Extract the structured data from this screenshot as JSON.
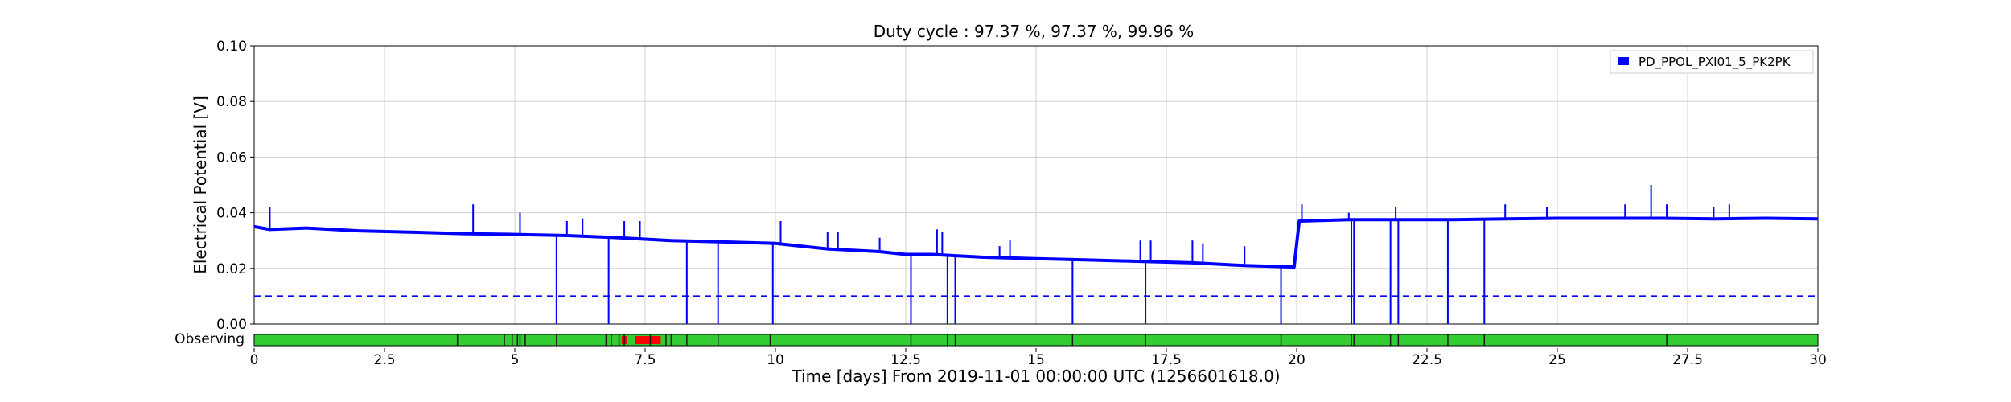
{
  "chart_data": {
    "type": "line",
    "title": "Duty cycle : 97.37 %, 97.37 %, 99.96 %",
    "xlabel": "Time [days] From 2019-11-01 00:00:00 UTC (1256601618.0)",
    "ylabel": "Electrical Potential [V]",
    "xlim": [
      0,
      30
    ],
    "ylim": [
      0,
      0.1
    ],
    "grid": true,
    "legend_position": "top-right",
    "x_ticks": [
      0,
      2.5,
      5,
      7.5,
      10,
      12.5,
      15,
      17.5,
      20,
      22.5,
      25,
      27.5,
      30
    ],
    "x_tick_labels": [
      "0",
      "2.5",
      "5",
      "7.5",
      "10",
      "12.5",
      "15",
      "17.5",
      "20",
      "22.5",
      "25",
      "27.5",
      "30"
    ],
    "y_ticks": [
      0,
      0.02,
      0.04,
      0.06,
      0.08,
      0.1
    ],
    "y_tick_labels": [
      "0.00",
      "0.02",
      "0.04",
      "0.06",
      "0.08",
      "0.10"
    ],
    "series": [
      {
        "name": "PD_PPOL_PXI01_5_PK2PK",
        "color": "#0000ff",
        "style": "solid",
        "x": [
          0,
          0.3,
          1,
          2,
          3,
          4,
          5,
          6,
          7,
          8,
          9,
          10,
          11,
          12,
          12.5,
          13,
          14,
          15,
          16,
          17,
          18,
          19,
          19.95,
          20.05,
          21,
          22,
          23,
          24,
          25,
          26,
          27,
          28,
          29,
          30
        ],
        "values": [
          0.035,
          0.034,
          0.0345,
          0.0335,
          0.033,
          0.0325,
          0.0322,
          0.0318,
          0.031,
          0.03,
          0.0295,
          0.029,
          0.027,
          0.026,
          0.025,
          0.025,
          0.024,
          0.0235,
          0.023,
          0.0225,
          0.022,
          0.021,
          0.0205,
          0.037,
          0.0375,
          0.0375,
          0.0375,
          0.0378,
          0.038,
          0.038,
          0.038,
          0.0378,
          0.038,
          0.0378
        ]
      },
      {
        "name": "",
        "color": "#0000ff",
        "style": "dashed",
        "x": [
          0,
          30
        ],
        "values": [
          0.01,
          0.01
        ]
      }
    ],
    "dropouts": {
      "x": [
        5.8,
        6.8,
        8.3,
        8.9,
        9.95,
        12.6,
        13.3,
        13.45,
        15.7,
        17.1,
        19.7,
        21.05,
        21.1,
        21.8,
        21.95,
        22.9,
        23.6
      ],
      "min_value": 0
    },
    "spikes": {
      "x": [
        0.3,
        4.2,
        5.1,
        6.0,
        6.3,
        7.1,
        7.4,
        10.1,
        11.0,
        11.2,
        12.0,
        13.1,
        13.2,
        14.3,
        14.5,
        17.0,
        17.2,
        18.0,
        18.2,
        19.0,
        20.1,
        21.0,
        21.9,
        24.0,
        24.8,
        26.3,
        26.8,
        27.1,
        28.0,
        28.3
      ],
      "values": [
        0.042,
        0.043,
        0.04,
        0.037,
        0.038,
        0.037,
        0.037,
        0.037,
        0.033,
        0.033,
        0.031,
        0.034,
        0.033,
        0.028,
        0.03,
        0.03,
        0.03,
        0.03,
        0.029,
        0.028,
        0.043,
        0.04,
        0.042,
        0.043,
        0.042,
        0.043,
        0.05,
        0.043,
        0.042,
        0.043
      ]
    },
    "state_bar": {
      "label": "Observing",
      "color": "#33cc33",
      "flag_color": "#ff0000",
      "tick_x": [
        3.9,
        4.8,
        4.95,
        5.05,
        5.1,
        5.2,
        5.8,
        6.75,
        6.85,
        7.0,
        7.1,
        7.6,
        7.9,
        8.0,
        8.3,
        8.9,
        9.9,
        12.6,
        13.3,
        13.45,
        15.7,
        17.1,
        19.7,
        21.05,
        21.1,
        21.8,
        21.95,
        22.9,
        23.6,
        27.1
      ],
      "flag_ranges": [
        [
          7.05,
          7.15
        ],
        [
          7.3,
          7.8
        ]
      ]
    }
  }
}
